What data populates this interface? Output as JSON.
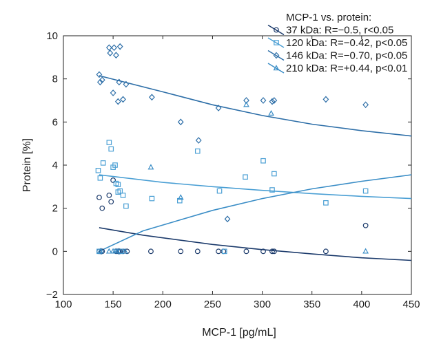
{
  "chart_data": {
    "type": "scatter",
    "xlabel": "MCP-1 [pg/mL]",
    "ylabel": "Protein [%]",
    "xlim": [
      100,
      450
    ],
    "ylim": [
      -2,
      10
    ],
    "xticks": [
      100,
      150,
      200,
      250,
      300,
      350,
      400,
      450
    ],
    "yticks": [
      -2,
      0,
      2,
      4,
      6,
      8,
      10
    ],
    "legend_title": "MCP-1 vs. protein:",
    "legend_position": "top-right",
    "series": [
      {
        "name": "37 kDa: R=−0.5, r<0.05",
        "marker": "circle",
        "color": "#1b3a6b",
        "points": [
          [
            136,
            2.5
          ],
          [
            139,
            2.0
          ],
          [
            146,
            2.6
          ],
          [
            148,
            2.3
          ],
          [
            150,
            3.3
          ],
          [
            136,
            0
          ],
          [
            139,
            0
          ],
          [
            153,
            0
          ],
          [
            155,
            0
          ],
          [
            157,
            0
          ],
          [
            160,
            0
          ],
          [
            164,
            0
          ],
          [
            188,
            0
          ],
          [
            218,
            0
          ],
          [
            235,
            0
          ],
          [
            256,
            0
          ],
          [
            261,
            0
          ],
          [
            284,
            0
          ],
          [
            301,
            0
          ],
          [
            310,
            0
          ],
          [
            312,
            0
          ],
          [
            364,
            0
          ],
          [
            404,
            1.2
          ]
        ],
        "fit": [
          [
            136,
            1.1
          ],
          [
            180,
            0.75
          ],
          [
            250,
            0.32
          ],
          [
            300,
            0.08
          ],
          [
            350,
            -0.12
          ],
          [
            400,
            -0.3
          ],
          [
            450,
            -0.42
          ]
        ]
      },
      {
        "name": "120 kDa: R=−0.42, p<0.05",
        "marker": "square",
        "color": "#4a9fd4",
        "points": [
          [
            135,
            3.75
          ],
          [
            137,
            3.4
          ],
          [
            140,
            4.1
          ],
          [
            146,
            5.05
          ],
          [
            148,
            4.75
          ],
          [
            150,
            3.9
          ],
          [
            152,
            4.0
          ],
          [
            153,
            3.15
          ],
          [
            155,
            2.75
          ],
          [
            155,
            3.1
          ],
          [
            157,
            2.8
          ],
          [
            160,
            2.6
          ],
          [
            163,
            2.1
          ],
          [
            189,
            2.45
          ],
          [
            217,
            2.35
          ],
          [
            235,
            4.65
          ],
          [
            257,
            2.8
          ],
          [
            262,
            0
          ],
          [
            283,
            3.45
          ],
          [
            301,
            4.2
          ],
          [
            310,
            2.85
          ],
          [
            312,
            3.6
          ],
          [
            364,
            2.25
          ],
          [
            404,
            2.8
          ],
          [
            136,
            0
          ],
          [
            158,
            0
          ]
        ],
        "fit": [
          [
            136,
            3.55
          ],
          [
            200,
            3.2
          ],
          [
            250,
            3.0
          ],
          [
            300,
            2.83
          ],
          [
            350,
            2.68
          ],
          [
            400,
            2.55
          ],
          [
            450,
            2.45
          ]
        ]
      },
      {
        "name": "146 kDa: R=−0.70, p<0.05",
        "marker": "diamond",
        "color": "#2e6fa8",
        "points": [
          [
            136,
            8.2
          ],
          [
            137,
            7.85
          ],
          [
            139,
            7.95
          ],
          [
            146,
            9.45
          ],
          [
            147,
            9.2
          ],
          [
            150,
            7.35
          ],
          [
            151,
            9.45
          ],
          [
            153,
            9.1
          ],
          [
            155,
            6.95
          ],
          [
            156,
            7.85
          ],
          [
            157,
            9.5
          ],
          [
            160,
            7.05
          ],
          [
            163,
            7.75
          ],
          [
            189,
            7.15
          ],
          [
            218,
            6.0
          ],
          [
            236,
            5.15
          ],
          [
            256,
            6.65
          ],
          [
            265,
            1.5
          ],
          [
            284,
            7.0
          ],
          [
            301,
            7.0
          ],
          [
            310,
            6.95
          ],
          [
            312,
            7.0
          ],
          [
            364,
            7.05
          ],
          [
            404,
            6.8
          ],
          [
            138,
            0
          ],
          [
            156,
            0
          ]
        ],
        "fit": [
          [
            136,
            8.15
          ],
          [
            200,
            7.4
          ],
          [
            250,
            6.8
          ],
          [
            300,
            6.3
          ],
          [
            350,
            5.9
          ],
          [
            400,
            5.6
          ],
          [
            450,
            5.35
          ]
        ]
      },
      {
        "name": "210 kDa: R=+0.44, p<0.01",
        "marker": "triangle",
        "color": "#3a8dc6",
        "points": [
          [
            137,
            0
          ],
          [
            146,
            0
          ],
          [
            150,
            0
          ],
          [
            152,
            0
          ],
          [
            154,
            0
          ],
          [
            162,
            0
          ],
          [
            188,
            3.9
          ],
          [
            218,
            2.5
          ],
          [
            284,
            6.8
          ],
          [
            309,
            6.4
          ],
          [
            404,
            0
          ]
        ],
        "fit": [
          [
            136,
            0
          ],
          [
            180,
            0.95
          ],
          [
            250,
            1.9
          ],
          [
            300,
            2.45
          ],
          [
            350,
            2.9
          ],
          [
            400,
            3.25
          ],
          [
            450,
            3.55
          ]
        ]
      }
    ]
  }
}
